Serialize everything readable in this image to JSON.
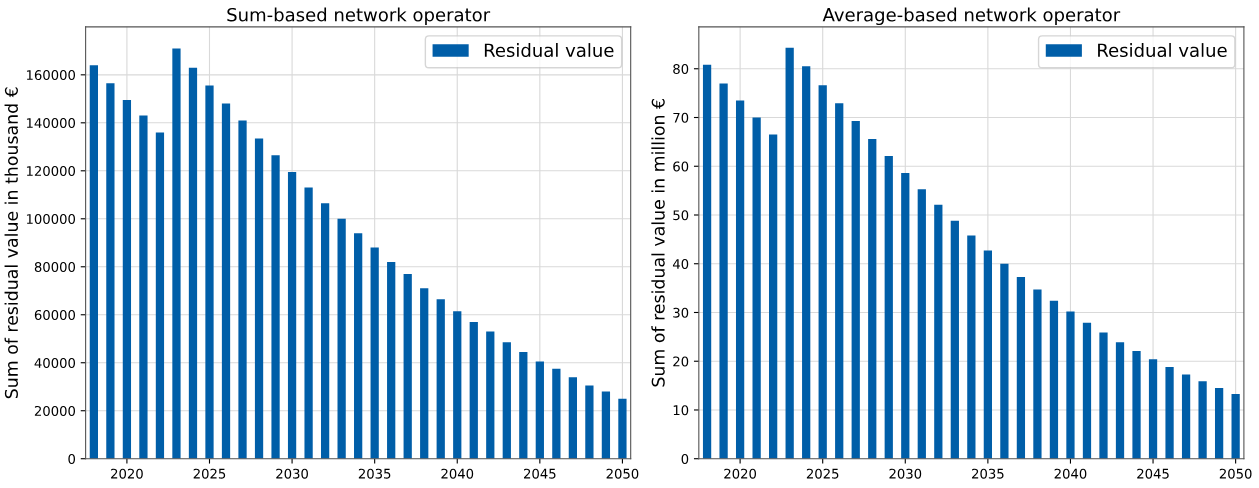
{
  "chart_data": [
    {
      "type": "bar",
      "title": "Sum-based network operator",
      "ylabel": "Sum of residual value in thousand €",
      "x": [
        2018,
        2019,
        2020,
        2021,
        2022,
        2023,
        2024,
        2025,
        2026,
        2027,
        2028,
        2029,
        2030,
        2031,
        2032,
        2033,
        2034,
        2035,
        2036,
        2037,
        2038,
        2039,
        2040,
        2041,
        2042,
        2043,
        2044,
        2045,
        2046,
        2047,
        2048,
        2049,
        2050
      ],
      "series": [
        {
          "name": "Residual value",
          "color": "#005ea8",
          "values": [
            164000,
            156500,
            149500,
            143000,
            136000,
            171000,
            163000,
            155500,
            148000,
            141000,
            133500,
            126500,
            119500,
            113000,
            106500,
            100000,
            94000,
            88000,
            82000,
            77000,
            71000,
            66500,
            61500,
            57000,
            53000,
            48500,
            44500,
            40500,
            37500,
            34000,
            30500,
            28000,
            25000
          ]
        }
      ],
      "xlim": [
        2017.5,
        2050.5
      ],
      "xticks": [
        2020,
        2025,
        2030,
        2035,
        2040,
        2045,
        2050
      ],
      "ylim": [
        0,
        180000
      ],
      "yticks": [
        0,
        20000,
        40000,
        60000,
        80000,
        100000,
        120000,
        140000,
        160000
      ],
      "grid": true,
      "legend": "top right"
    },
    {
      "type": "bar",
      "title": "Average-based network operator",
      "ylabel": "Sum of residual value in million €",
      "x": [
        2018,
        2019,
        2020,
        2021,
        2022,
        2023,
        2024,
        2025,
        2026,
        2027,
        2028,
        2029,
        2030,
        2031,
        2032,
        2033,
        2034,
        2035,
        2036,
        2037,
        2038,
        2039,
        2040,
        2041,
        2042,
        2043,
        2044,
        2045,
        2046,
        2047,
        2048,
        2049,
        2050
      ],
      "series": [
        {
          "name": "Residual value",
          "color": "#005ea8",
          "values": [
            80.8,
            77,
            73.5,
            70,
            66.5,
            84.3,
            80.5,
            76.6,
            72.9,
            69.3,
            65.6,
            62.1,
            58.6,
            55.3,
            52.1,
            48.8,
            45.8,
            42.7,
            40,
            37.3,
            34.7,
            32.4,
            30.2,
            27.9,
            25.9,
            23.9,
            22.1,
            20.4,
            18.8,
            17.3,
            15.9,
            14.5,
            13.3
          ]
        }
      ],
      "xlim": [
        2017.5,
        2050.5
      ],
      "xticks": [
        2020,
        2025,
        2030,
        2035,
        2040,
        2045,
        2050
      ],
      "ylim": [
        0,
        88.6
      ],
      "yticks": [
        0,
        10,
        20,
        30,
        40,
        50,
        60,
        70,
        80
      ],
      "grid": true,
      "legend": "top right"
    }
  ]
}
